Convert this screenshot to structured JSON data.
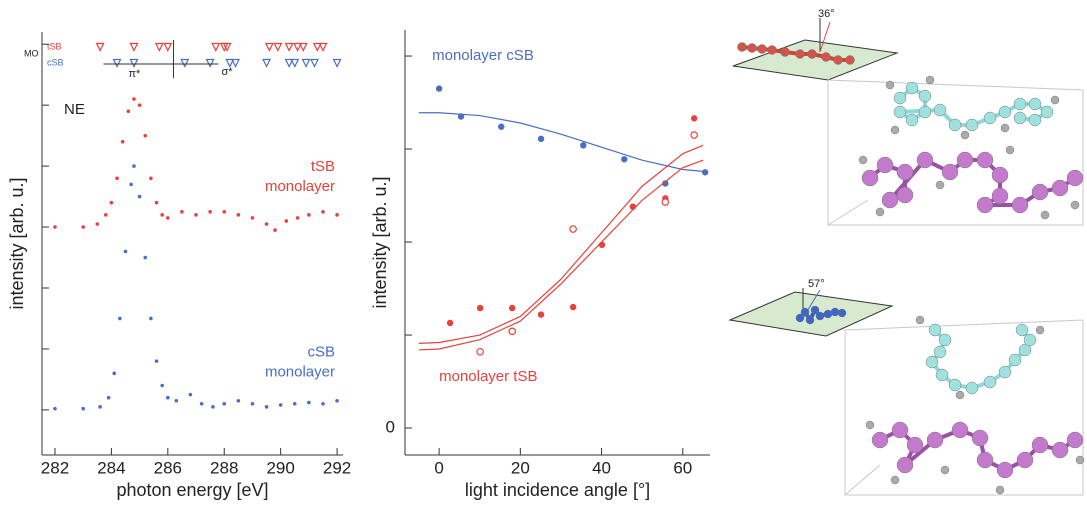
{
  "chart_data": [
    {
      "type": "scatter",
      "xlabel": "photon energy [eV]",
      "ylabel": "intensity [arb. u.]",
      "xlim": [
        281.54,
        292.21
      ],
      "xticks": [
        282,
        284,
        286,
        288,
        290,
        292
      ],
      "ylim": [
        -0.74,
        6.2
      ],
      "yticks": [
        0,
        1,
        2,
        3,
        4,
        5,
        6
      ],
      "corner_label": "NE",
      "mo_label": "MO",
      "divider_x": 286.2,
      "left_arrow": "π*",
      "right_arrow": "σ*",
      "markers": [
        {
          "name": "tSB",
          "color": "#e8413c",
          "x": [
            283.6,
            284.8,
            285.7,
            286.0,
            287.7,
            288.0,
            288.1,
            289.6,
            289.9,
            290.3,
            290.6,
            290.8,
            291.3,
            291.5
          ]
        },
        {
          "name": "cSB",
          "color": "#4a6fc0",
          "x": [
            284.2,
            284.8,
            286.6,
            287.5,
            288.2,
            288.4,
            289.5,
            290.3,
            290.5,
            290.9,
            291.2,
            292.0
          ]
        }
      ],
      "series": [
        {
          "label": [
            "tSB",
            "monolayer"
          ],
          "color": "#e8413c",
          "x": [
            282,
            283,
            283.5,
            283.8,
            284.0,
            284.2,
            284.4,
            284.6,
            284.8,
            285.0,
            285.2,
            285.4,
            285.6,
            285.8,
            286.0,
            286.5,
            287,
            287.5,
            288,
            288.5,
            289,
            289.5,
            289.8,
            290.2,
            290.6,
            291,
            291.5,
            292
          ],
          "values": [
            3.0,
            3.0,
            3.05,
            3.2,
            3.4,
            3.8,
            4.4,
            4.9,
            5.1,
            5.0,
            4.5,
            3.8,
            3.4,
            3.2,
            3.15,
            3.25,
            3.2,
            3.25,
            3.25,
            3.2,
            3.15,
            3.05,
            2.95,
            3.1,
            3.15,
            3.2,
            3.25,
            3.2
          ]
        },
        {
          "label": [
            "cSB",
            "monolayer"
          ],
          "color": "#4a6fc0",
          "x": [
            282,
            283,
            283.6,
            283.9,
            284.1,
            284.3,
            284.5,
            284.7,
            284.8,
            285.0,
            285.2,
            285.4,
            285.6,
            285.8,
            286.0,
            286.3,
            286.8,
            287.2,
            287.6,
            288,
            288.5,
            289,
            289.5,
            290,
            290.5,
            291,
            291.5,
            292
          ],
          "values": [
            0.02,
            0.02,
            0.05,
            0.2,
            0.6,
            1.5,
            2.6,
            3.7,
            4.0,
            3.5,
            2.5,
            1.5,
            0.8,
            0.4,
            0.2,
            0.15,
            0.25,
            0.1,
            0.05,
            0.1,
            0.15,
            0.1,
            0.05,
            0.08,
            0.1,
            0.12,
            0.1,
            0.15
          ]
        }
      ]
    },
    {
      "type": "scatter",
      "xlabel": "light incidence angle [°]",
      "ylabel": "intensity [arb. u.]",
      "xlim": [
        -8.4,
        66.7
      ],
      "xticks": [
        0,
        20,
        40,
        60
      ],
      "ylim": [
        -0.29,
        4.28
      ],
      "yticks": [
        0
      ],
      "yminor_ticks": [
        1,
        2,
        3,
        4
      ],
      "series": [
        {
          "name": "monolayer cSB",
          "color": "#4a6fc0",
          "mode": "markers",
          "marker": "filled",
          "x": [
            0,
            5.4,
            15.3,
            25.1,
            35.5,
            45.6,
            55.7,
            65.5
          ],
          "values": [
            3.65,
            3.35,
            3.24,
            3.11,
            3.04,
            2.89,
            2.63,
            2.75
          ]
        },
        {
          "color": "#4a6fc0",
          "mode": "line",
          "x": [
            -5,
            0,
            10,
            20,
            30,
            40,
            50,
            60,
            65
          ],
          "values": [
            3.39,
            3.39,
            3.36,
            3.28,
            3.16,
            3.02,
            2.88,
            2.78,
            2.76
          ]
        },
        {
          "name": "monolayer tSB",
          "color": "#e8413c",
          "mode": "markers",
          "marker": "filled",
          "x": [
            2.7,
            10.1,
            18,
            25.1,
            33,
            40.1,
            47.7,
            55.7,
            62.8
          ],
          "values": [
            1.13,
            1.29,
            1.29,
            1.22,
            1.3,
            1.97,
            2.38,
            2.47,
            3.33
          ]
        },
        {
          "color": "#e8413c",
          "mode": "markers",
          "marker": "open",
          "x": [
            10.1,
            18,
            33,
            55.7,
            62.8
          ],
          "values": [
            0.82,
            1.04,
            2.14,
            2.43,
            3.15
          ]
        },
        {
          "color": "#e8413c",
          "mode": "line",
          "x": [
            -5,
            0,
            10,
            20,
            30,
            40,
            50,
            60,
            65
          ],
          "values": [
            0.91,
            0.92,
            1.0,
            1.2,
            1.6,
            2.1,
            2.6,
            2.95,
            3.04
          ]
        },
        {
          "color": "#e8413c",
          "mode": "line",
          "x": [
            -5,
            0,
            10,
            20,
            30,
            40,
            50,
            60,
            65
          ],
          "values": [
            0.84,
            0.85,
            0.95,
            1.15,
            1.55,
            2.0,
            2.45,
            2.8,
            2.88
          ]
        }
      ]
    }
  ],
  "diagrams": [
    {
      "angle": "36°"
    },
    {
      "angle": "57°"
    }
  ]
}
